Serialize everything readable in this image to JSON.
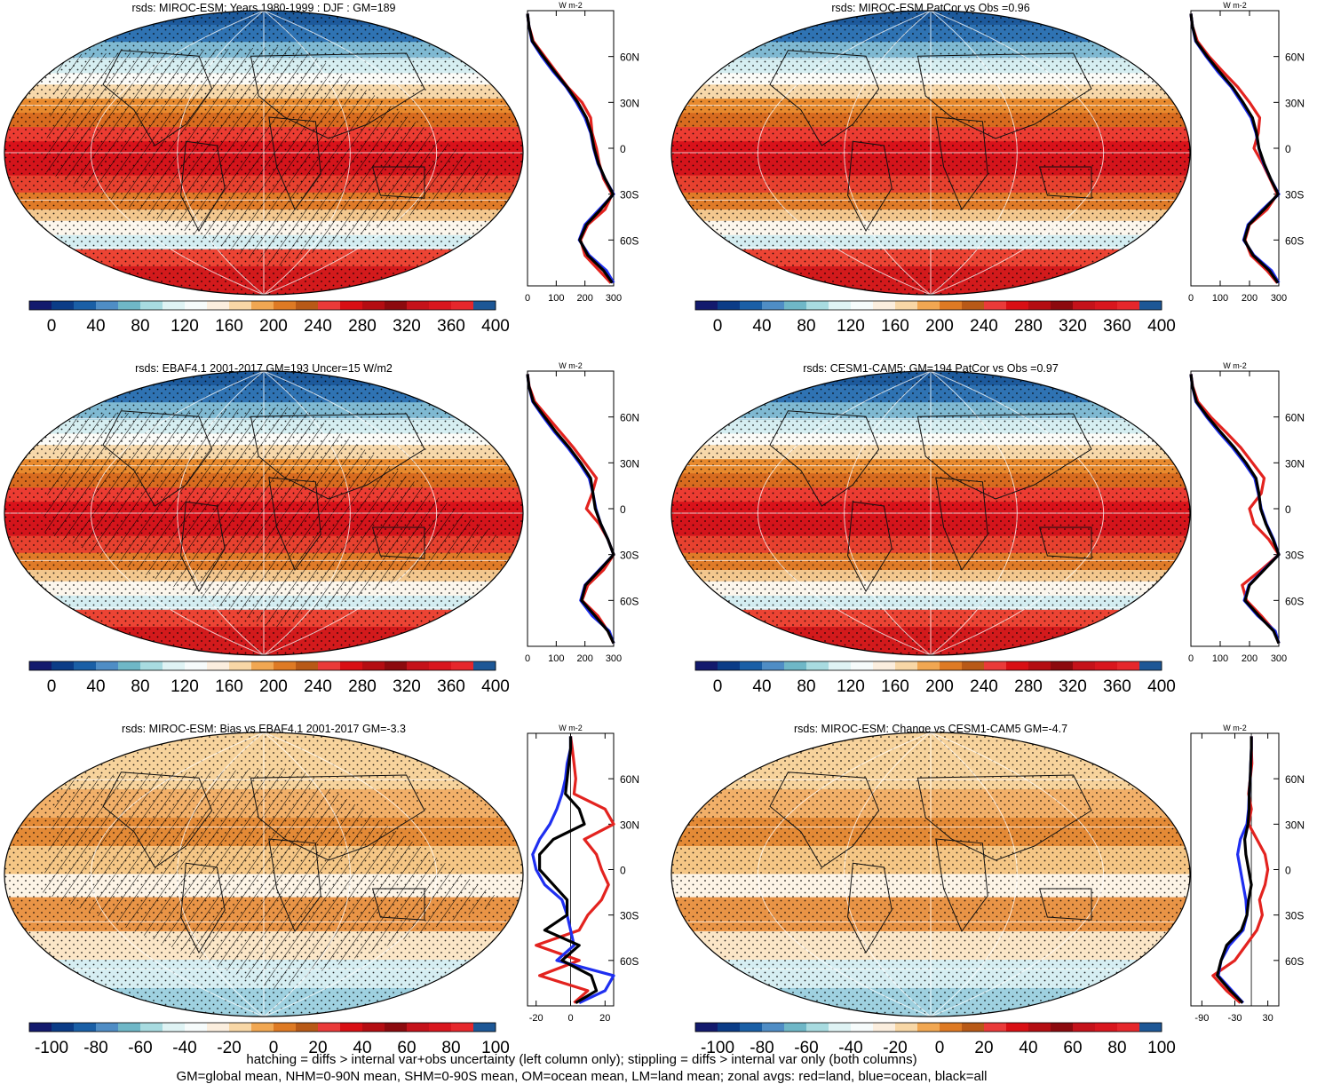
{
  "colors": {
    "abs_scale": [
      "#131a6d",
      "#0b3c87",
      "#1a5fa6",
      "#4f8dc5",
      "#6fb7c7",
      "#a8dbe0",
      "#dff3f4",
      "#f6fbfb",
      "#fbeede",
      "#f8d7a6",
      "#f1a752",
      "#de7a24",
      "#b85917",
      "#ea3a39",
      "#d90f14",
      "#b40d12",
      "#8c0a0e",
      "#c5121a",
      "#d9161e",
      "#e6272c",
      "#1d5796"
    ],
    "diff_scale": [
      "#131a6d",
      "#0b3c87",
      "#1a5fa6",
      "#4f8dc5",
      "#6fb7c7",
      "#a8dbe0",
      "#dff3f4",
      "#f6fbfb",
      "#fbeede",
      "#f8d7a6",
      "#f1a752",
      "#de7a24",
      "#b85917",
      "#ea3a39",
      "#d90f14",
      "#b40d12",
      "#8c0a0e",
      "#c5121a",
      "#d9161e",
      "#e6272c",
      "#1d5796"
    ],
    "land": "#e3231f",
    "ocean": "#1f2ff0",
    "all": "#000000"
  },
  "chart_data": [
    {
      "type": "heatmap",
      "title": "rsds: MIROC-ESM: Years 1980-1999 : DJF : GM=189",
      "colorbar_ticks": [
        "0",
        "40",
        "80",
        "120",
        "160",
        "200",
        "240",
        "280",
        "320",
        "360",
        "400"
      ],
      "zonal_mean": {
        "type": "line",
        "unit": "W m-2",
        "x_ticks": [
          "0",
          "100",
          "200",
          "300"
        ],
        "xlim": [
          0,
          300
        ],
        "y_ticks": [
          "60N",
          "30N",
          "0",
          "30S",
          "60S"
        ],
        "lat": [
          88,
          80,
          70,
          60,
          50,
          40,
          30,
          20,
          10,
          0,
          -10,
          -20,
          -30,
          -40,
          -50,
          -60,
          -70,
          -80,
          -88
        ],
        "series": [
          {
            "name": "land",
            "values": [
              0,
              5,
              20,
              60,
              100,
              140,
              190,
              220,
              225,
              240,
              250,
              265,
              295,
              270,
              210,
              185,
              200,
              250,
              290
            ]
          },
          {
            "name": "ocean",
            "values": [
              0,
              5,
              15,
              50,
              90,
              135,
              170,
              200,
              220,
              230,
              245,
              270,
              300,
              250,
              200,
              180,
              215,
              275,
              300
            ]
          },
          {
            "name": "all",
            "values": [
              0,
              5,
              17,
              55,
              95,
              138,
              175,
              205,
              222,
              232,
              247,
              270,
              298,
              255,
              205,
              182,
              210,
              265,
              295
            ]
          }
        ]
      }
    },
    {
      "type": "heatmap",
      "title": "rsds: MIROC-ESM PatCor vs Obs =0.96",
      "colorbar_ticks": [
        "0",
        "40",
        "80",
        "120",
        "160",
        "200",
        "240",
        "280",
        "320",
        "360",
        "400"
      ],
      "zonal_mean": {
        "type": "line",
        "unit": "W m-2",
        "x_ticks": [
          "0",
          "100",
          "200",
          "300"
        ],
        "xlim": [
          0,
          300
        ],
        "y_ticks": [
          "60N",
          "30N",
          "0",
          "30S",
          "60S"
        ],
        "lat": [
          88,
          80,
          70,
          60,
          50,
          40,
          30,
          20,
          10,
          0,
          -10,
          -20,
          -30,
          -40,
          -50,
          -60,
          -70,
          -80,
          -88
        ],
        "series": [
          {
            "name": "land",
            "values": [
              0,
              5,
              22,
              62,
              110,
              160,
              200,
              235,
              230,
              215,
              245,
              270,
              295,
              260,
              200,
              185,
              205,
              260,
              295
            ]
          },
          {
            "name": "ocean",
            "values": [
              0,
              5,
              16,
              52,
              92,
              138,
              172,
              205,
              222,
              232,
              248,
              272,
              300,
              245,
              195,
              180,
              215,
              275,
              300
            ]
          },
          {
            "name": "all",
            "values": [
              0,
              5,
              18,
              56,
              98,
              142,
              178,
              210,
              224,
              232,
              250,
              272,
              298,
              250,
              198,
              182,
              212,
              268,
              297
            ]
          }
        ]
      }
    },
    {
      "type": "heatmap",
      "title": "rsds: EBAF4.1 2001-2017 GM=193 Uncer=15 W/m2",
      "colorbar_ticks": [
        "0",
        "40",
        "80",
        "120",
        "160",
        "200",
        "240",
        "280",
        "320",
        "360",
        "400"
      ],
      "zonal_mean": {
        "type": "line",
        "unit": "W m-2",
        "x_ticks": [
          "0",
          "100",
          "200",
          "300"
        ],
        "xlim": [
          0,
          300
        ],
        "y_ticks": [
          "60N",
          "30N",
          "0",
          "30S",
          "60S"
        ],
        "lat": [
          88,
          80,
          70,
          60,
          50,
          40,
          30,
          20,
          10,
          0,
          -10,
          -20,
          -30,
          -40,
          -50,
          -60,
          -70,
          -80,
          -88
        ],
        "series": [
          {
            "name": "land",
            "values": [
              0,
              6,
              25,
              70,
              115,
              160,
              200,
              240,
              225,
              205,
              250,
              280,
              300,
              265,
              210,
              190,
              245,
              280,
              300
            ]
          },
          {
            "name": "ocean",
            "values": [
              0,
              5,
              18,
              55,
              95,
              140,
              180,
              215,
              228,
              238,
              255,
              280,
              300,
              250,
              200,
              185,
              225,
              285,
              300
            ]
          },
          {
            "name": "all",
            "values": [
              0,
              5,
              20,
              60,
              100,
              145,
              185,
              220,
              228,
              236,
              255,
              280,
              300,
              252,
              202,
              188,
              235,
              280,
              300
            ]
          }
        ]
      }
    },
    {
      "type": "heatmap",
      "title": "rsds: CESM1-CAM5: GM=194 PatCor vs Obs =0.97",
      "colorbar_ticks": [
        "0",
        "40",
        "80",
        "120",
        "160",
        "200",
        "240",
        "280",
        "320",
        "360",
        "400"
      ],
      "zonal_mean": {
        "type": "line",
        "unit": "W m-2",
        "x_ticks": [
          "0",
          "100",
          "200",
          "300"
        ],
        "xlim": [
          0,
          300
        ],
        "y_ticks": [
          "60N",
          "30N",
          "0",
          "30S",
          "60S"
        ],
        "lat": [
          88,
          80,
          70,
          60,
          50,
          40,
          30,
          20,
          10,
          0,
          -10,
          -20,
          -30,
          -40,
          -50,
          -60,
          -70,
          -80,
          -88
        ],
        "series": [
          {
            "name": "land",
            "values": [
              0,
              6,
              24,
              68,
              120,
              170,
              210,
              250,
              240,
              200,
              215,
              265,
              300,
              240,
              175,
              190,
              240,
              285,
              300
            ]
          },
          {
            "name": "ocean",
            "values": [
              0,
              5,
              17,
              54,
              96,
              142,
              182,
              218,
              230,
              240,
              258,
              282,
              300,
              248,
              198,
              182,
              228,
              288,
              300
            ]
          },
          {
            "name": "all",
            "values": [
              0,
              5,
              19,
              58,
              102,
              148,
              188,
              222,
              232,
              238,
              256,
              280,
              300,
              250,
              200,
              185,
              232,
              282,
              300
            ]
          }
        ]
      }
    },
    {
      "type": "heatmap",
      "title": "rsds: MIROC-ESM: Bias vs EBAF4.1 2001-2017 GM=-3.3",
      "colorbar_ticks": [
        "-100",
        "-80",
        "-60",
        "-40",
        "-20",
        "0",
        "20",
        "40",
        "60",
        "80",
        "100"
      ],
      "zonal_mean": {
        "type": "line",
        "unit": "W m-2",
        "x_ticks": [
          "-20",
          "0",
          "20"
        ],
        "xlim": [
          -25,
          25
        ],
        "y_ticks": [
          "60N",
          "30N",
          "0",
          "30S",
          "60S"
        ],
        "lat": [
          88,
          80,
          70,
          60,
          50,
          40,
          30,
          20,
          10,
          0,
          -10,
          -20,
          -30,
          -40,
          -50,
          -60,
          -70,
          -80,
          -88
        ],
        "series": [
          {
            "name": "land",
            "values": [
              0,
              1,
              2,
              3,
              2,
              20,
              25,
              8,
              15,
              18,
              22,
              18,
              10,
              5,
              -20,
              5,
              -18,
              10,
              2
            ]
          },
          {
            "name": "ocean",
            "values": [
              0,
              0,
              -2,
              -3,
              -5,
              -8,
              -12,
              -18,
              -22,
              -20,
              -15,
              -5,
              -2,
              0,
              2,
              -8,
              25,
              20,
              5
            ]
          },
          {
            "name": "all",
            "values": [
              0,
              0,
              -1,
              -2,
              -3,
              5,
              8,
              -10,
              -18,
              -18,
              -10,
              -2,
              -2,
              -15,
              5,
              -5,
              12,
              15,
              3
            ]
          }
        ]
      }
    },
    {
      "type": "heatmap",
      "title": "rsds: MIROC-ESM: Change vs CESM1-CAM5 GM=-4.7",
      "colorbar_ticks": [
        "-100",
        "-80",
        "-60",
        "-40",
        "-20",
        "0",
        "20",
        "40",
        "60",
        "80",
        "100"
      ],
      "zonal_mean": {
        "type": "line",
        "unit": "W m-2",
        "x_ticks": [
          "-90",
          "-30",
          "30"
        ],
        "xlim": [
          -110,
          50
        ],
        "y_ticks": [
          "60N",
          "30N",
          "0",
          "30S",
          "60S"
        ],
        "lat": [
          88,
          80,
          70,
          60,
          50,
          40,
          30,
          20,
          10,
          0,
          -10,
          -20,
          -30,
          -40,
          -50,
          -60,
          -70,
          -80,
          -88
        ],
        "series": [
          {
            "name": "land",
            "values": [
              0,
              0,
              1,
              -2,
              -5,
              0,
              -5,
              10,
              25,
              30,
              25,
              15,
              20,
              10,
              -10,
              -30,
              -70,
              -45,
              -20
            ]
          },
          {
            "name": "ocean",
            "values": [
              0,
              0,
              -1,
              -2,
              -4,
              -5,
              -8,
              -20,
              -25,
              -20,
              -15,
              -10,
              -8,
              -15,
              -40,
              -55,
              -60,
              -35,
              -15
            ]
          },
          {
            "name": "all",
            "values": [
              0,
              0,
              -1,
              -2,
              -4,
              -4,
              -6,
              -12,
              -10,
              -5,
              0,
              -5,
              -8,
              -18,
              -45,
              -55,
              -62,
              -38,
              -16
            ]
          }
        ]
      }
    }
  ],
  "footer": {
    "line1": "hatching = diffs > internal var+obs uncertainty (left column only); stippling = diffs > internal var only (both columns)",
    "line2": "GM=global mean, NHM=0-90N mean, SHM=0-90S mean, OM=ocean mean, LM=land mean; zonal avgs: red=land, blue=ocean, black=all"
  }
}
